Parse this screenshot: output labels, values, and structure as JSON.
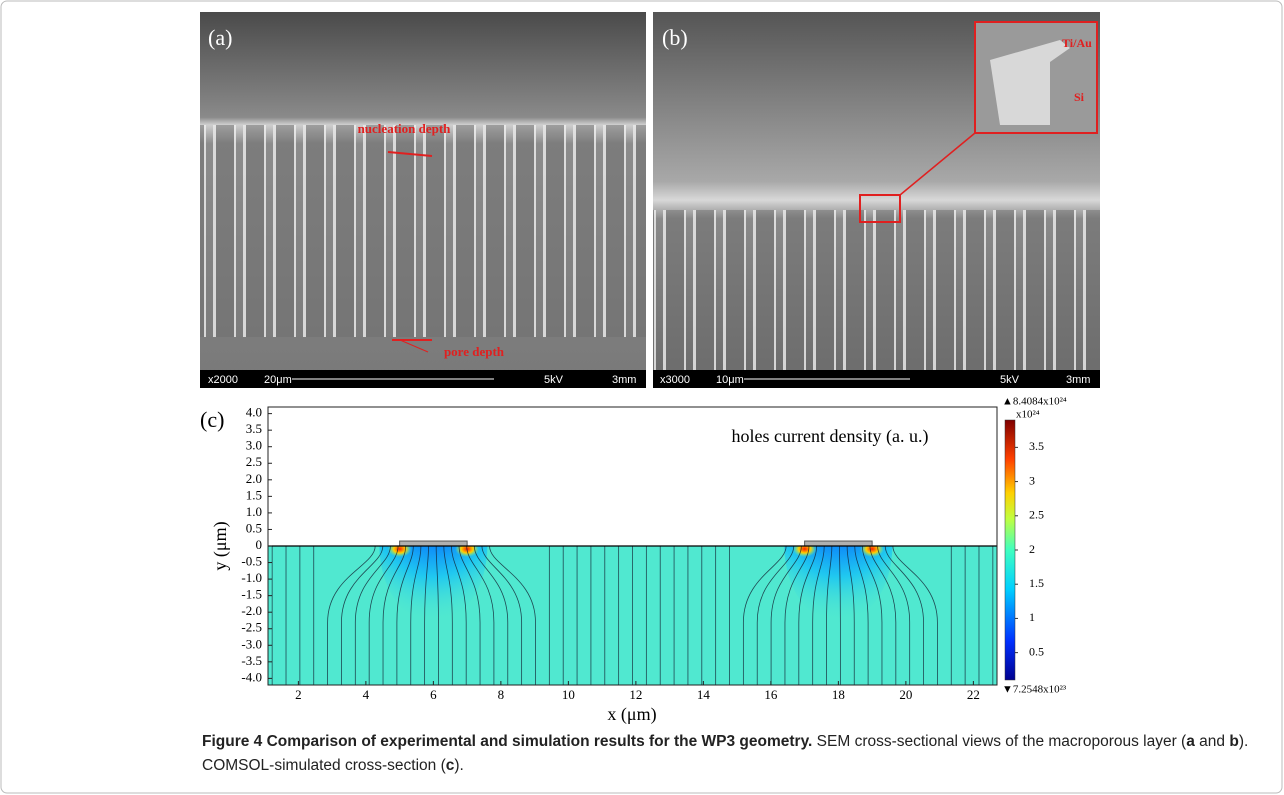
{
  "panels": [
    {
      "label": "(a)",
      "annotations": [
        "nucleation depth",
        "pore depth"
      ],
      "scale_bar": [
        "x2000",
        "20μm",
        "5kV",
        "3mm"
      ]
    },
    {
      "label": "(b)",
      "annotations": [
        "Ti/Au",
        "Si"
      ],
      "scale_bar": [
        "x3000",
        "10μm",
        "5kV",
        "3mm"
      ]
    }
  ],
  "chart_data": {
    "type": "heatmap",
    "label": "(c)",
    "annotation": "holes current density (a. u.)",
    "xlabel": "x (μm)",
    "ylabel": "y (μm)",
    "xlim": [
      1.1,
      22.7
    ],
    "ylim": [
      -4.2,
      4.2
    ],
    "xticks": [
      2,
      4,
      6,
      8,
      10,
      12,
      14,
      16,
      18,
      20,
      22
    ],
    "yticks": [
      {
        "value": 4,
        "label": "4.0"
      },
      3.5,
      {
        "value": 3,
        "label": "3.0"
      },
      2.5,
      {
        "value": 2,
        "label": "2.0"
      },
      1.5,
      {
        "value": 1,
        "label": "1.0"
      },
      0.5,
      0,
      -0.5,
      {
        "value": -1,
        "label": "-1.0"
      },
      -1.5,
      {
        "value": -2,
        "label": "-2.0"
      },
      -2.5,
      {
        "value": -3,
        "label": "-3.0"
      },
      -3.5,
      {
        "value": -4,
        "label": "-4.0"
      }
    ],
    "electrodes": [
      {
        "x": [
          5,
          7
        ],
        "y": [
          0,
          0.15
        ]
      },
      {
        "x": [
          17,
          19
        ],
        "y": [
          0,
          0.15
        ]
      }
    ],
    "colorbar": {
      "max_label": "▲8.4084x10²⁴",
      "unit_label": "x10²⁴",
      "min_label": "▼7.2548x10²³",
      "clim": [
        0.1,
        3.9
      ],
      "ticks": [
        0.5,
        1,
        1.5,
        2,
        2.5,
        3,
        3.5
      ]
    }
  },
  "caption": {
    "title": "Figure 4 Comparison of experimental and simulation results for the WP3 geometry.",
    "parts": [
      "SEM cross-sectional views of the macroporous layer (",
      "a",
      " and ",
      "b",
      "). COMSOL-simulated cross-section (",
      "c",
      ")."
    ]
  }
}
